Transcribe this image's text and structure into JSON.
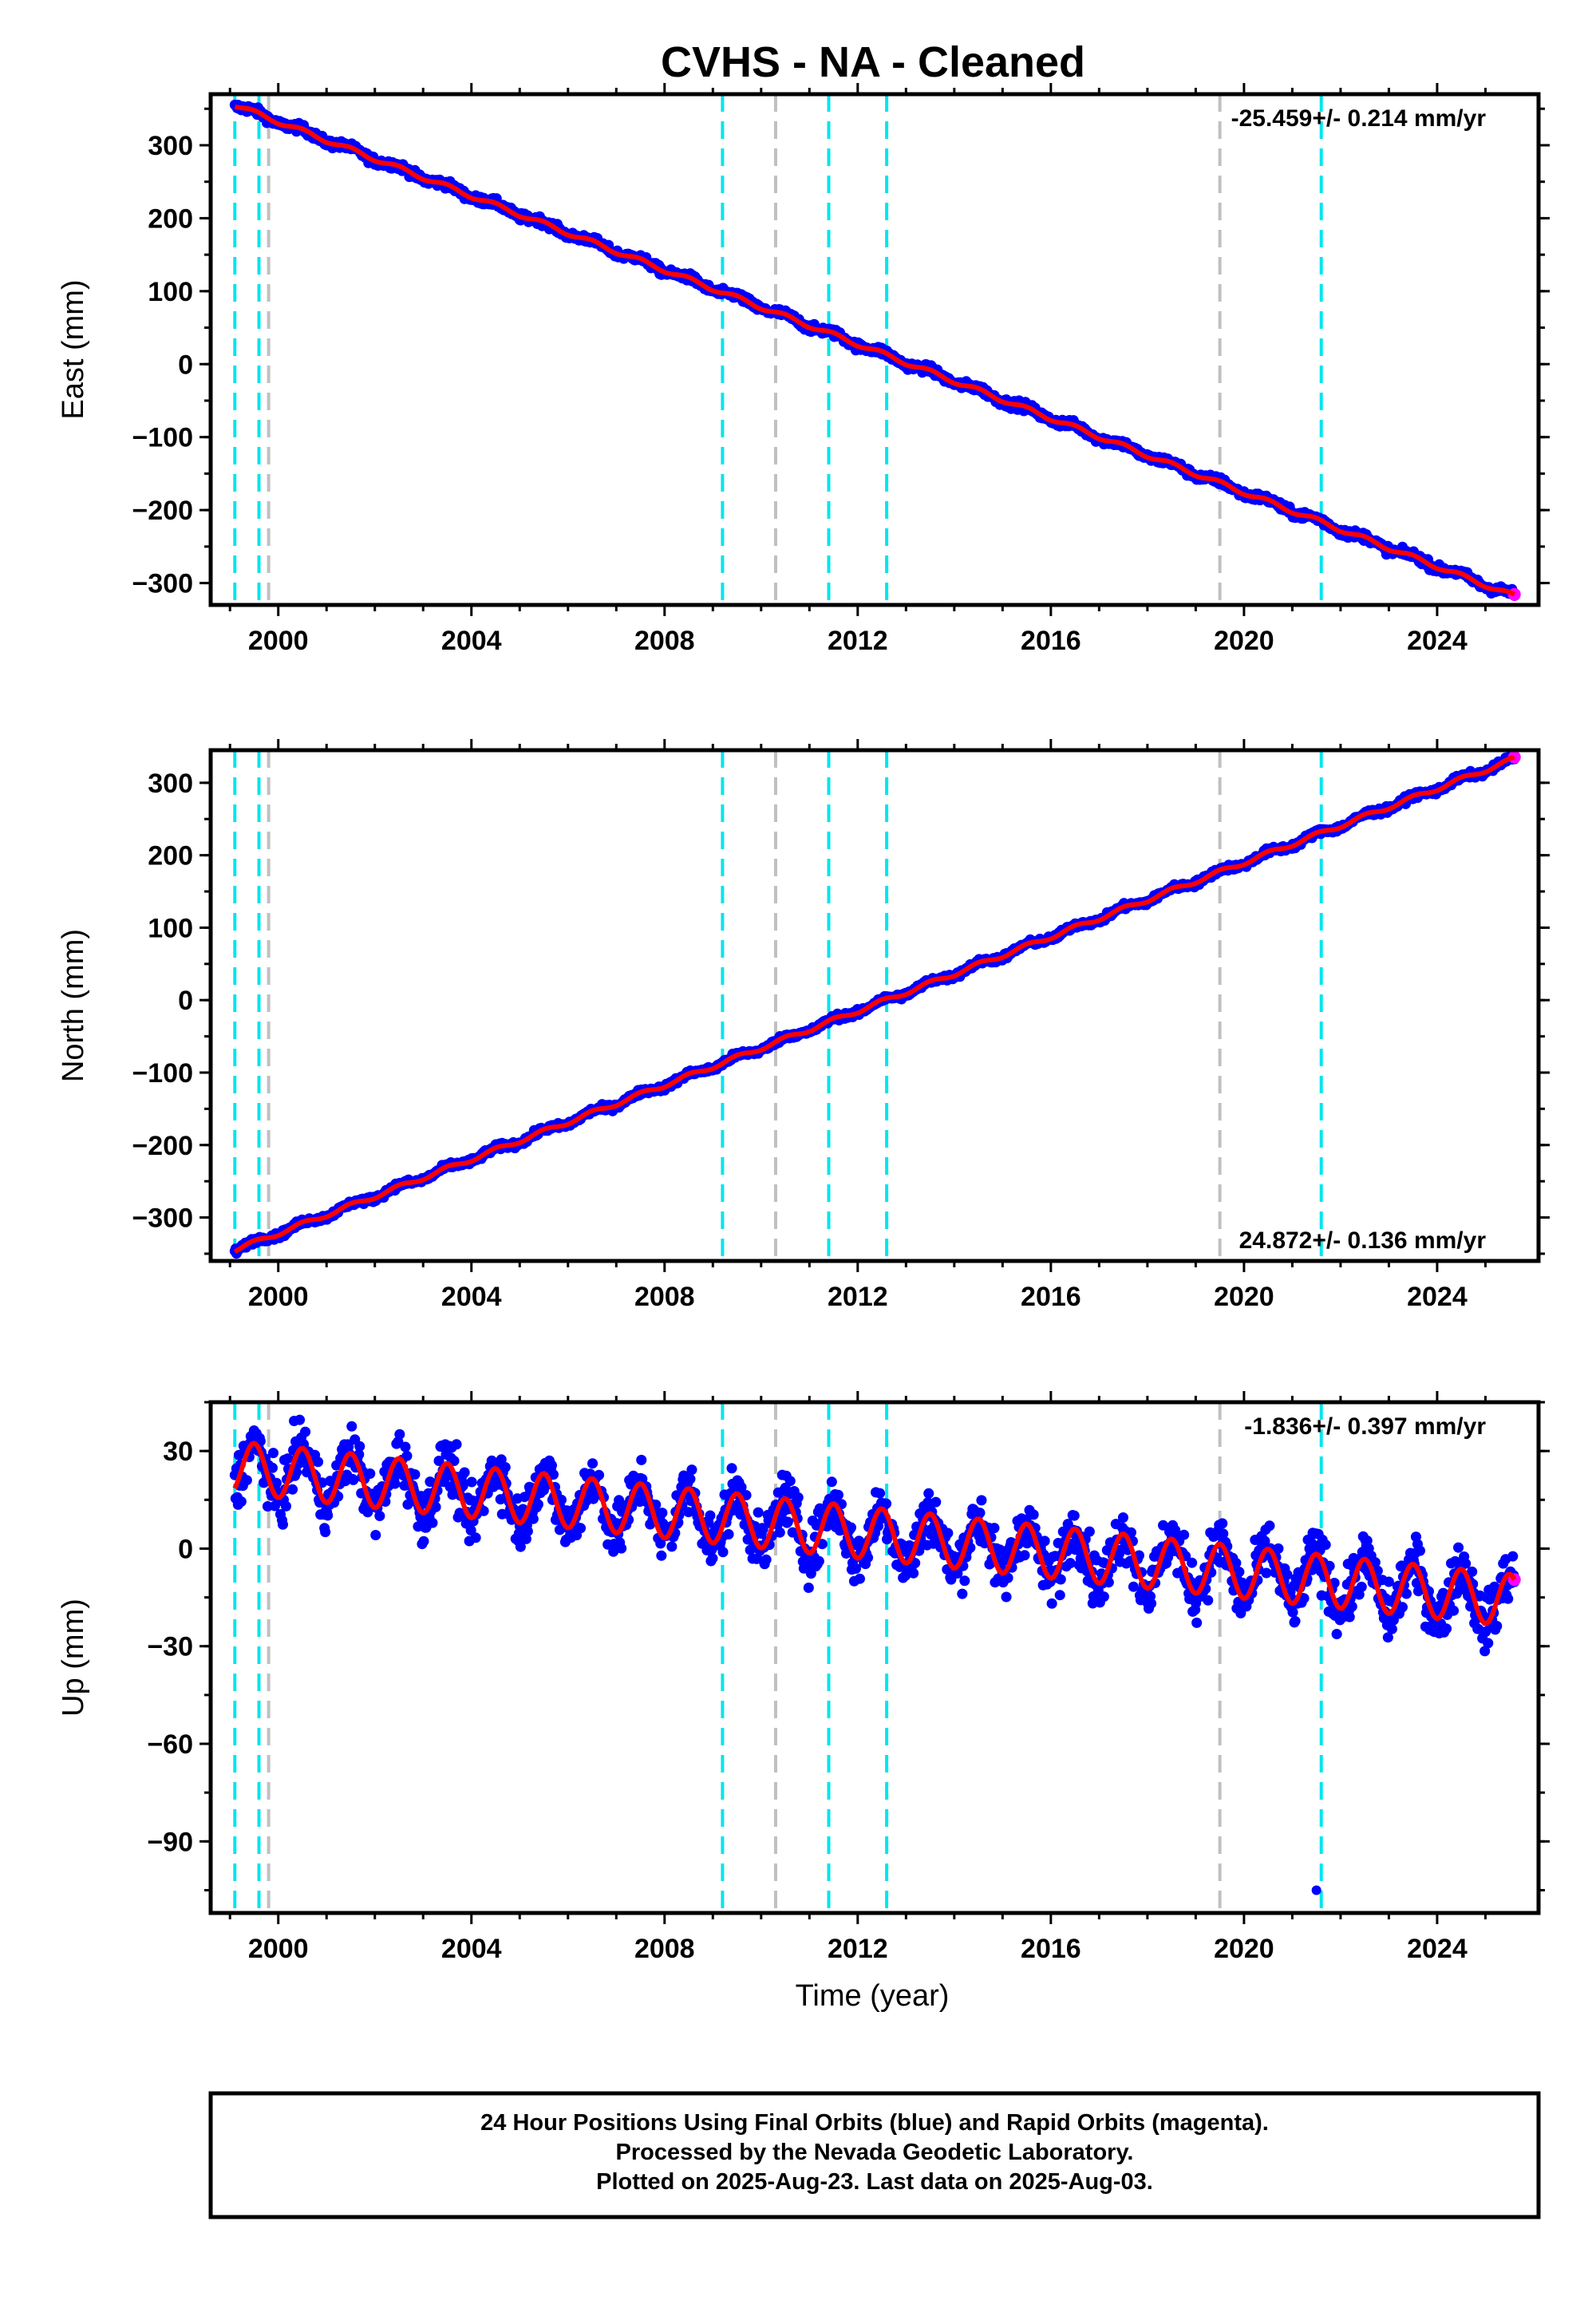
{
  "title": "CVHS  - NA - Cleaned",
  "footer": {
    "line1": "24 Hour Positions Using Final Orbits (blue) and Rapid Orbits (magenta).",
    "line2": "Processed by the Nevada Geodetic Laboratory.",
    "line3": "Plotted on 2025-Aug-23. Last data on 2025-Aug-03."
  },
  "colors": {
    "final_orbits": "#0000ff",
    "rapid_orbits": "#ff00ff",
    "model_fit": "#ff0000",
    "event_cyan": "#00e5ee",
    "event_gray": "#c0c0c0"
  },
  "chart_data": [
    {
      "type": "scatter",
      "panel": "east",
      "ylabel": "East (mm)",
      "xlabel": "",
      "xlim": [
        1998.6,
        2026.1
      ],
      "ylim": [
        -330,
        370
      ],
      "x_ticks": [
        "2000",
        "2004",
        "2008",
        "2012",
        "2016",
        "2020",
        "2024"
      ],
      "y_ticks": [
        "300",
        "200",
        "100",
        "0",
        "−100",
        "−200",
        "−300"
      ],
      "rate_label": "-25.459+/- 0.214 mm/yr",
      "rate_position": "top-right",
      "trend": {
        "x": [
          1999.1,
          2025.6
        ],
        "y": [
          355,
          -318
        ]
      },
      "seasonal_amplitude": 3,
      "noise": 4
    },
    {
      "type": "scatter",
      "panel": "north",
      "ylabel": "North (mm)",
      "xlabel": "",
      "xlim": [
        1998.6,
        2026.1
      ],
      "ylim": [
        -360,
        345
      ],
      "x_ticks": [
        "2000",
        "2004",
        "2008",
        "2012",
        "2016",
        "2020",
        "2024"
      ],
      "y_ticks": [
        "300",
        "200",
        "100",
        "0",
        "−100",
        "−200",
        "−300"
      ],
      "rate_label": "24.872+/- 0.136 mm/yr",
      "rate_position": "bottom-right",
      "trend": {
        "x": [
          1999.1,
          2025.6
        ],
        "y": [
          -345,
          333
        ]
      },
      "seasonal_amplitude": 3,
      "noise": 3
    },
    {
      "type": "scatter",
      "panel": "up",
      "ylabel": "Up (mm)",
      "xlabel": "Time (year)",
      "xlim": [
        1998.6,
        2026.1
      ],
      "ylim": [
        -112,
        45
      ],
      "x_ticks": [
        "2000",
        "2004",
        "2008",
        "2012",
        "2016",
        "2020",
        "2024"
      ],
      "y_ticks": [
        "30",
        "0",
        "−30",
        "−60",
        "−90"
      ],
      "rate_label": "-1.836+/- 0.397 mm/yr",
      "rate_position": "top-right",
      "trend": {
        "x": [
          1999.1,
          2025.6
        ],
        "y": [
          25,
          -16
        ]
      },
      "seasonal_amplitude": 8,
      "noise": 6,
      "outliers": [
        {
          "x": 2021.5,
          "y": -105
        }
      ]
    }
  ],
  "events_cyan": [
    1999.1,
    1999.6,
    2009.2,
    2011.4,
    2012.6,
    2021.6
  ],
  "events_gray": [
    1999.8,
    2010.3,
    2019.5
  ],
  "x_tick_values": [
    2000,
    2004,
    2008,
    2012,
    2016,
    2020,
    2024
  ],
  "y_tick_values": [
    [
      300,
      200,
      100,
      0,
      -100,
      -200,
      -300
    ],
    [
      300,
      200,
      100,
      0,
      -100,
      -200,
      -300
    ],
    [
      30,
      0,
      -30,
      -60,
      -90
    ]
  ]
}
